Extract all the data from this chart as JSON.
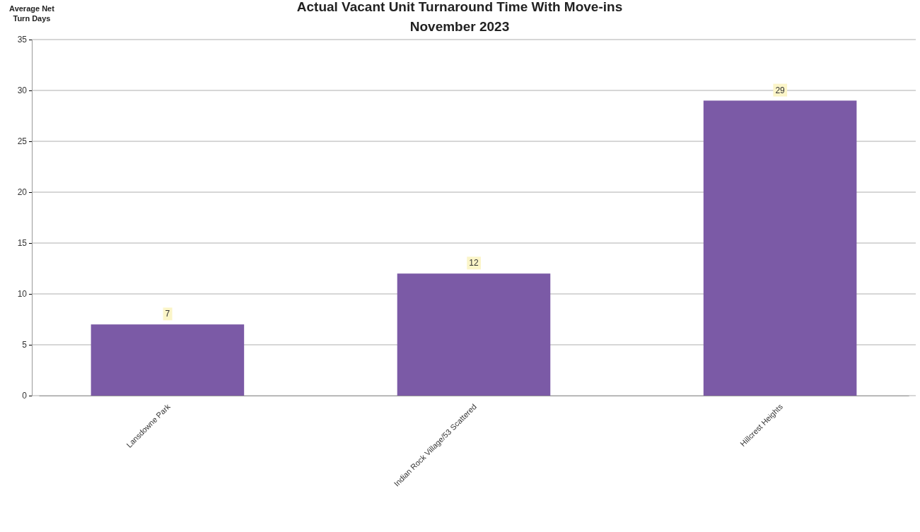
{
  "chart_data": {
    "type": "bar",
    "title": "Actual Vacant Unit Turnaround Time With Move-ins",
    "subtitle": "November 2023",
    "ylabel": "Average Net Turn Days",
    "categories": [
      "Lansdowne Park",
      "Indian Rock Village/53 Scattered",
      "Hillcrest Heights"
    ],
    "values": [
      7,
      12,
      29
    ],
    "color": "#7b5aa6",
    "data_labels": true,
    "ylim": [
      0,
      35
    ],
    "yticks": [
      0,
      5,
      10,
      15,
      20,
      25,
      30,
      35
    ],
    "grid": "y"
  }
}
